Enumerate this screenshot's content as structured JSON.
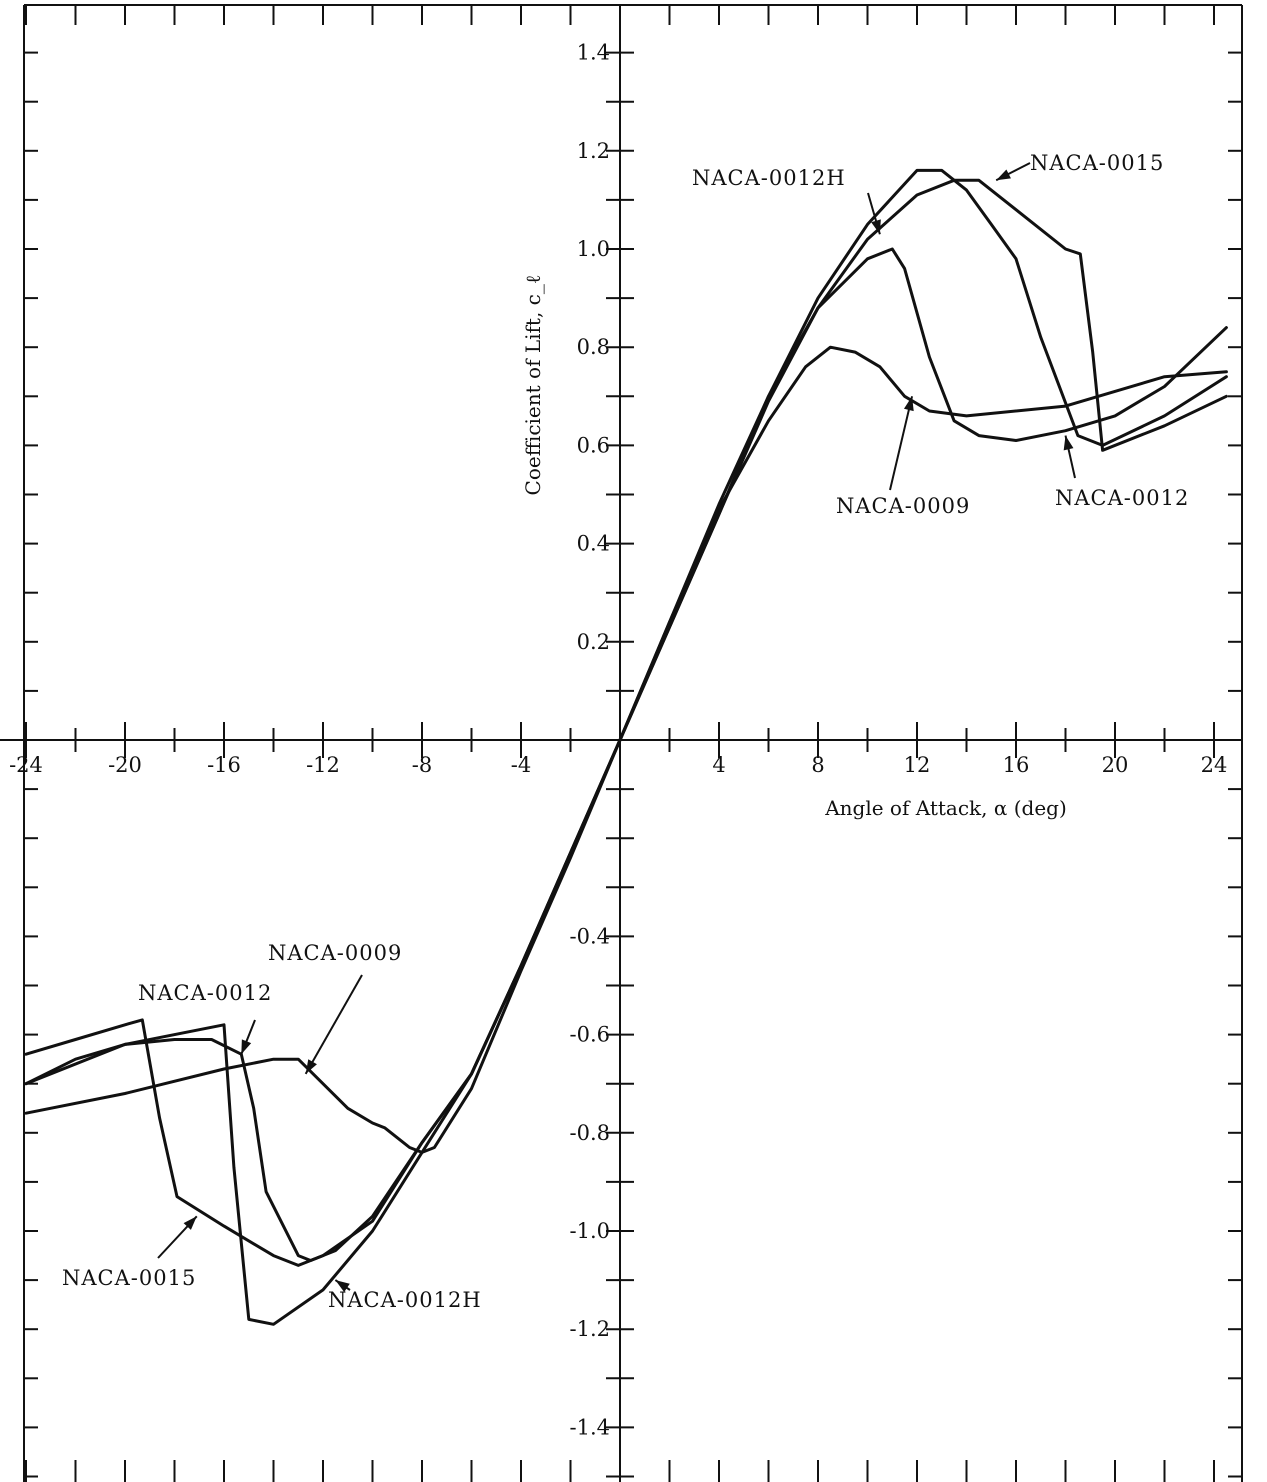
{
  "chart_data": {
    "type": "line",
    "title": "",
    "xlabel": "Angle of Attack, α (deg)",
    "ylabel": "Coefficient of Lift, c_ℓ",
    "xlim": [
      -24,
      24.5
    ],
    "ylim": [
      -1.5,
      1.5
    ],
    "x_ticks": [
      -24,
      -20,
      -16,
      -12,
      -8,
      -4,
      4,
      8,
      12,
      16,
      20,
      24
    ],
    "y_ticks": [
      1.4,
      1.2,
      1.0,
      0.8,
      0.6,
      0.4,
      0.2,
      -0.4,
      -0.6,
      -0.8,
      -1.0,
      -1.2,
      -1.4
    ],
    "x_tick_labels": [
      "-24",
      "-20",
      "-16",
      "-12",
      "-8",
      "-4",
      "4",
      "8",
      "12",
      "16",
      "20",
      "24"
    ],
    "y_tick_labels": [
      "1.4",
      "1.2",
      "1.0",
      "0.8",
      "0.6",
      "0.4",
      "0.2",
      "-0.4",
      "-0.6",
      "-0.8",
      "-1.0",
      "-1.2",
      "-1.4"
    ],
    "grid": false,
    "series": [
      {
        "name": "NACA-0009",
        "points": [
          [
            -24,
            -0.76
          ],
          [
            -20,
            -0.72
          ],
          [
            -16,
            -0.67
          ],
          [
            -14,
            -0.65
          ],
          [
            -13,
            -0.65
          ],
          [
            -11,
            -0.75
          ],
          [
            -10,
            -0.78
          ],
          [
            -9.5,
            -0.79
          ],
          [
            -8.5,
            -0.83
          ],
          [
            -8,
            -0.84
          ],
          [
            -7.5,
            -0.83
          ],
          [
            -6,
            -0.71
          ],
          [
            -4,
            -0.47
          ],
          [
            -2,
            -0.24
          ],
          [
            0,
            0
          ],
          [
            2,
            0.24
          ],
          [
            4,
            0.47
          ],
          [
            6,
            0.65
          ],
          [
            7.5,
            0.76
          ],
          [
            8.5,
            0.8
          ],
          [
            9.5,
            0.79
          ],
          [
            10.5,
            0.76
          ],
          [
            11.5,
            0.7
          ],
          [
            12.5,
            0.67
          ],
          [
            14,
            0.66
          ],
          [
            18,
            0.68
          ],
          [
            22,
            0.74
          ],
          [
            24.5,
            0.75
          ]
        ]
      },
      {
        "name": "NACA-0012",
        "points": [
          [
            -24,
            -0.7
          ],
          [
            -22,
            -0.65
          ],
          [
            -20,
            -0.62
          ],
          [
            -18,
            -0.61
          ],
          [
            -16.5,
            -0.61
          ],
          [
            -15.3,
            -0.64
          ],
          [
            -14.8,
            -0.75
          ],
          [
            -14.3,
            -0.92
          ],
          [
            -13,
            -1.05
          ],
          [
            -12.5,
            -1.06
          ],
          [
            -11.5,
            -1.04
          ],
          [
            -10,
            -0.97
          ],
          [
            -8,
            -0.82
          ],
          [
            -6,
            -0.68
          ],
          [
            -4,
            -0.46
          ],
          [
            -2,
            -0.23
          ],
          [
            0,
            0
          ],
          [
            2,
            0.23
          ],
          [
            4,
            0.46
          ],
          [
            6,
            0.69
          ],
          [
            8,
            0.88
          ],
          [
            10,
            0.98
          ],
          [
            11,
            1.0
          ],
          [
            11.5,
            0.96
          ],
          [
            12.5,
            0.78
          ],
          [
            13.5,
            0.65
          ],
          [
            14.5,
            0.62
          ],
          [
            16,
            0.61
          ],
          [
            18,
            0.63
          ],
          [
            20,
            0.66
          ],
          [
            22,
            0.72
          ],
          [
            24.5,
            0.84
          ]
        ]
      },
      {
        "name": "NACA-0012H",
        "points": [
          [
            -24,
            -0.7
          ],
          [
            -20,
            -0.62
          ],
          [
            -17,
            -0.59
          ],
          [
            -16,
            -0.58
          ],
          [
            -15.6,
            -0.87
          ],
          [
            -15,
            -1.18
          ],
          [
            -14,
            -1.19
          ],
          [
            -12,
            -1.12
          ],
          [
            -10,
            -1.0
          ],
          [
            -8,
            -0.84
          ],
          [
            -6,
            -0.68
          ],
          [
            -4,
            -0.46
          ],
          [
            -2,
            -0.23
          ],
          [
            0,
            0
          ],
          [
            2,
            0.24
          ],
          [
            4,
            0.48
          ],
          [
            6,
            0.7
          ],
          [
            8,
            0.9
          ],
          [
            10,
            1.05
          ],
          [
            12,
            1.16
          ],
          [
            13,
            1.16
          ],
          [
            14,
            1.12
          ],
          [
            15,
            1.05
          ],
          [
            16,
            0.98
          ],
          [
            17,
            0.82
          ],
          [
            18.5,
            0.62
          ],
          [
            19.5,
            0.6
          ],
          [
            22,
            0.66
          ],
          [
            24.5,
            0.74
          ]
        ]
      },
      {
        "name": "NACA-0015",
        "points": [
          [
            -24,
            -0.64
          ],
          [
            -22,
            -0.61
          ],
          [
            -20,
            -0.58
          ],
          [
            -19.3,
            -0.57
          ],
          [
            -18.6,
            -0.77
          ],
          [
            -17.9,
            -0.93
          ],
          [
            -16,
            -0.99
          ],
          [
            -14,
            -1.05
          ],
          [
            -13,
            -1.07
          ],
          [
            -12,
            -1.05
          ],
          [
            -10,
            -0.98
          ],
          [
            -8,
            -0.82
          ],
          [
            -6,
            -0.68
          ],
          [
            -4,
            -0.46
          ],
          [
            -2,
            -0.23
          ],
          [
            0,
            0
          ],
          [
            2,
            0.23
          ],
          [
            4,
            0.46
          ],
          [
            6,
            0.7
          ],
          [
            8,
            0.88
          ],
          [
            10,
            1.02
          ],
          [
            12,
            1.11
          ],
          [
            13.5,
            1.14
          ],
          [
            14.5,
            1.14
          ],
          [
            16,
            1.08
          ],
          [
            18,
            1.0
          ],
          [
            18.6,
            0.99
          ],
          [
            19.1,
            0.79
          ],
          [
            19.5,
            0.59
          ],
          [
            22,
            0.64
          ],
          [
            24.5,
            0.7
          ]
        ]
      }
    ],
    "annotations": [
      {
        "text": "NACA-0012H",
        "series": "NACA-0012H",
        "arrow_to": [
          10.5,
          1.03
        ]
      },
      {
        "text": "NACA-0015",
        "series": "NACA-0015",
        "arrow_to": [
          15.2,
          1.14
        ]
      },
      {
        "text": "NACA-0009",
        "series": "NACA-0009",
        "arrow_to": [
          11.8,
          0.7
        ]
      },
      {
        "text": "NACA-0012",
        "series": "NACA-0012",
        "arrow_to": [
          18,
          0.62
        ]
      },
      {
        "text": "NACA-0009",
        "series": "NACA-0009",
        "arrow_to": [
          -12.7,
          -0.68
        ]
      },
      {
        "text": "NACA-0012",
        "series": "NACA-0012",
        "arrow_to": [
          -15.3,
          -0.64
        ]
      },
      {
        "text": "NACA-0015",
        "series": "NACA-0015",
        "arrow_to": [
          -17.1,
          -0.97
        ]
      },
      {
        "text": "NACA-0012H",
        "series": "NACA-0012H",
        "arrow_to": [
          -11.5,
          -1.1
        ]
      }
    ]
  }
}
